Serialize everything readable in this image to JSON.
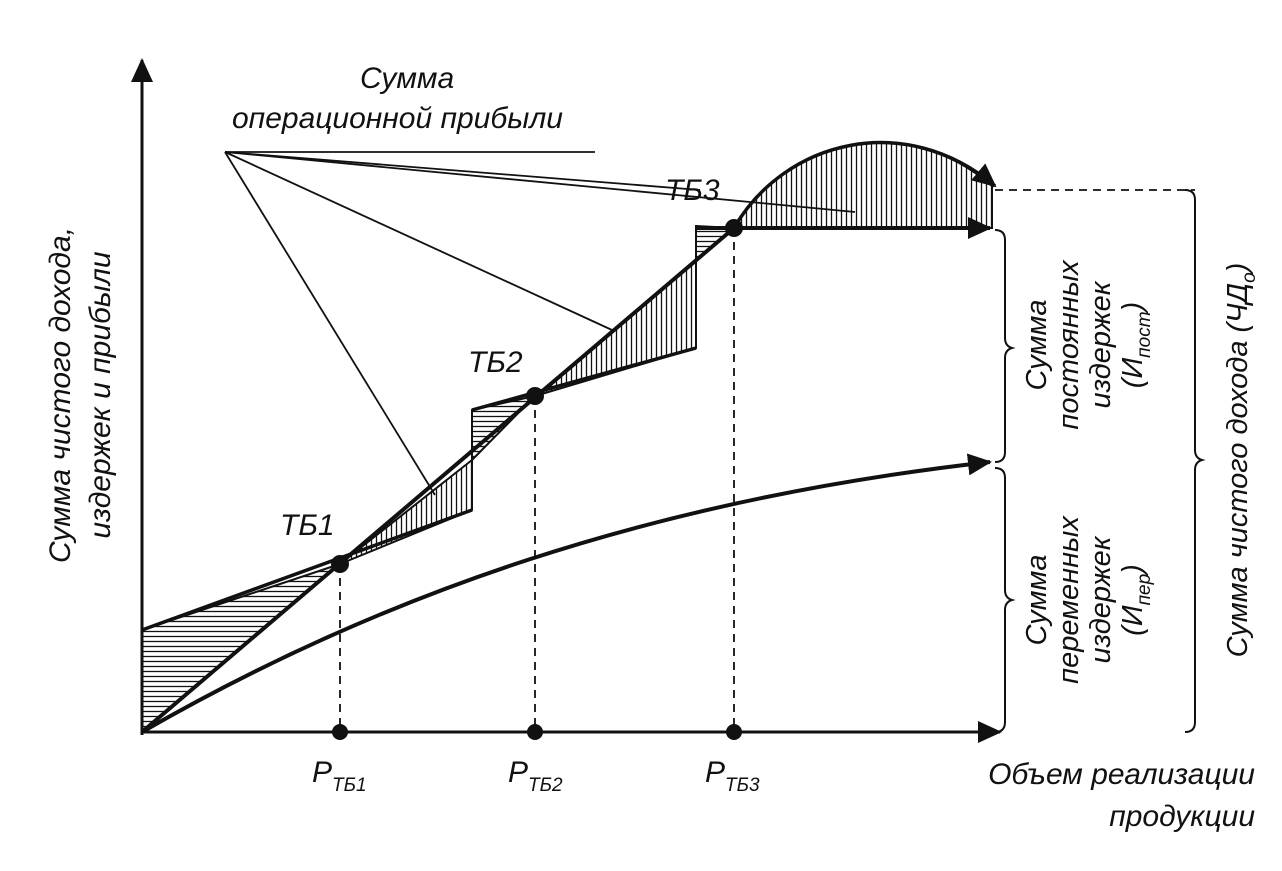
{
  "annotation": {
    "line1": "Сумма",
    "line2": "операционной прибыли"
  },
  "y_axis": {
    "line1": "Сумма чистого дохода,",
    "line2": "издержек и прибыли"
  },
  "x_axis": {
    "line1": "Объем реализации",
    "line2": "продукции"
  },
  "breakeven_points": [
    {
      "label": "ТБ1",
      "p_main": "P",
      "p_sub": "ТБ1"
    },
    {
      "label": "ТБ2",
      "p_main": "P",
      "p_sub": "ТБ2"
    },
    {
      "label": "ТБ3",
      "p_main": "P",
      "p_sub": "ТБ3"
    }
  ],
  "brace_labels": {
    "variable": {
      "line1": "Сумма",
      "line2": "переменных",
      "line3": "издержек",
      "line4_main": "(И",
      "line4_sub": "пер",
      "line4_end": ")"
    },
    "fixed": {
      "line1": "Сумма",
      "line2": "постоянных",
      "line3": "издержек",
      "line4_main": "(И",
      "line4_sub": "пост",
      "line4_end": ")"
    },
    "income": {
      "line1": "Сумма чистого дохода (ЧД",
      "line1_sub": "о",
      "line1_end": ")"
    }
  },
  "colors": {
    "ink": "#111111",
    "paper": "#ffffff"
  }
}
